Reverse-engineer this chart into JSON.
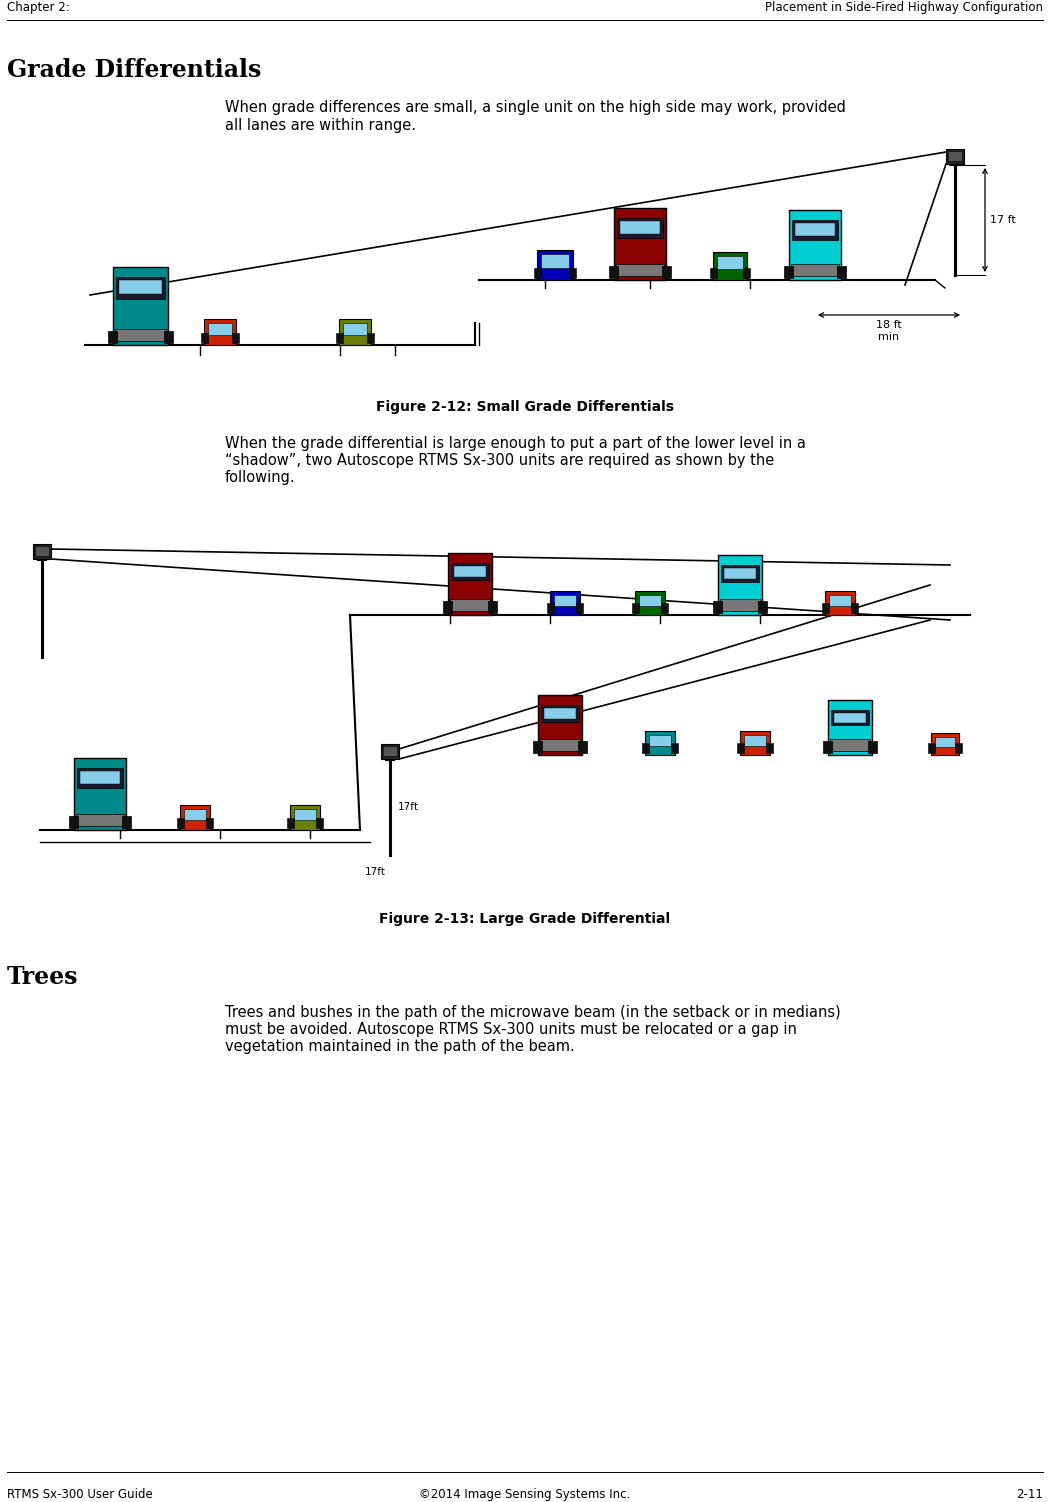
{
  "bg_color": "#ffffff",
  "header_left": "Chapter 2:",
  "header_right": "Placement in Side-Fired Highway Configuration",
  "footer_left": "RTMS Sx-300 User Guide",
  "footer_center": "©2014 Image Sensing Systems Inc.",
  "footer_right": "2-11",
  "section1_title": "Grade Differentials",
  "para1_line1": "When grade differences are small, a single unit on the high side may work, provided",
  "para1_line2": "all lanes are within range.",
  "fig1_caption": "Figure 2-12: Small Grade Differentials",
  "para2_line1": "When the grade differential is large enough to put a part of the lower level in a",
  "para2_line2": "“shadow”, two Autoscope RTMS Sx-300 units are required as shown by the",
  "para2_line3": "following.",
  "fig2_caption": "Figure 2-13: Large Grade Differential",
  "section2_title": "Trees",
  "para3_line1": "Trees and bushes in the path of the microwave beam (in the setback or in medians)",
  "para3_line2": "must be avoided. Autoscope RTMS Sx-300 units must be relocated or a gap in",
  "para3_line3": "vegetation maintained in the path of the beam.",
  "text_color": "#000000",
  "header_font_size": 8.5,
  "section_font_size": 17,
  "body_font_size": 10.5,
  "caption_font_size": 10,
  "line_color": "#000000",
  "truck_teal": "#008B8B",
  "truck_darkred": "#8B0000",
  "truck_cyan": "#00CED1",
  "car_red": "#CC2200",
  "car_olive": "#6B8000",
  "car_blue": "#0000BB",
  "car_green": "#006400",
  "road_gray": "#999999",
  "sensor_dark": "#222222",
  "sensor_gray": "#555555"
}
